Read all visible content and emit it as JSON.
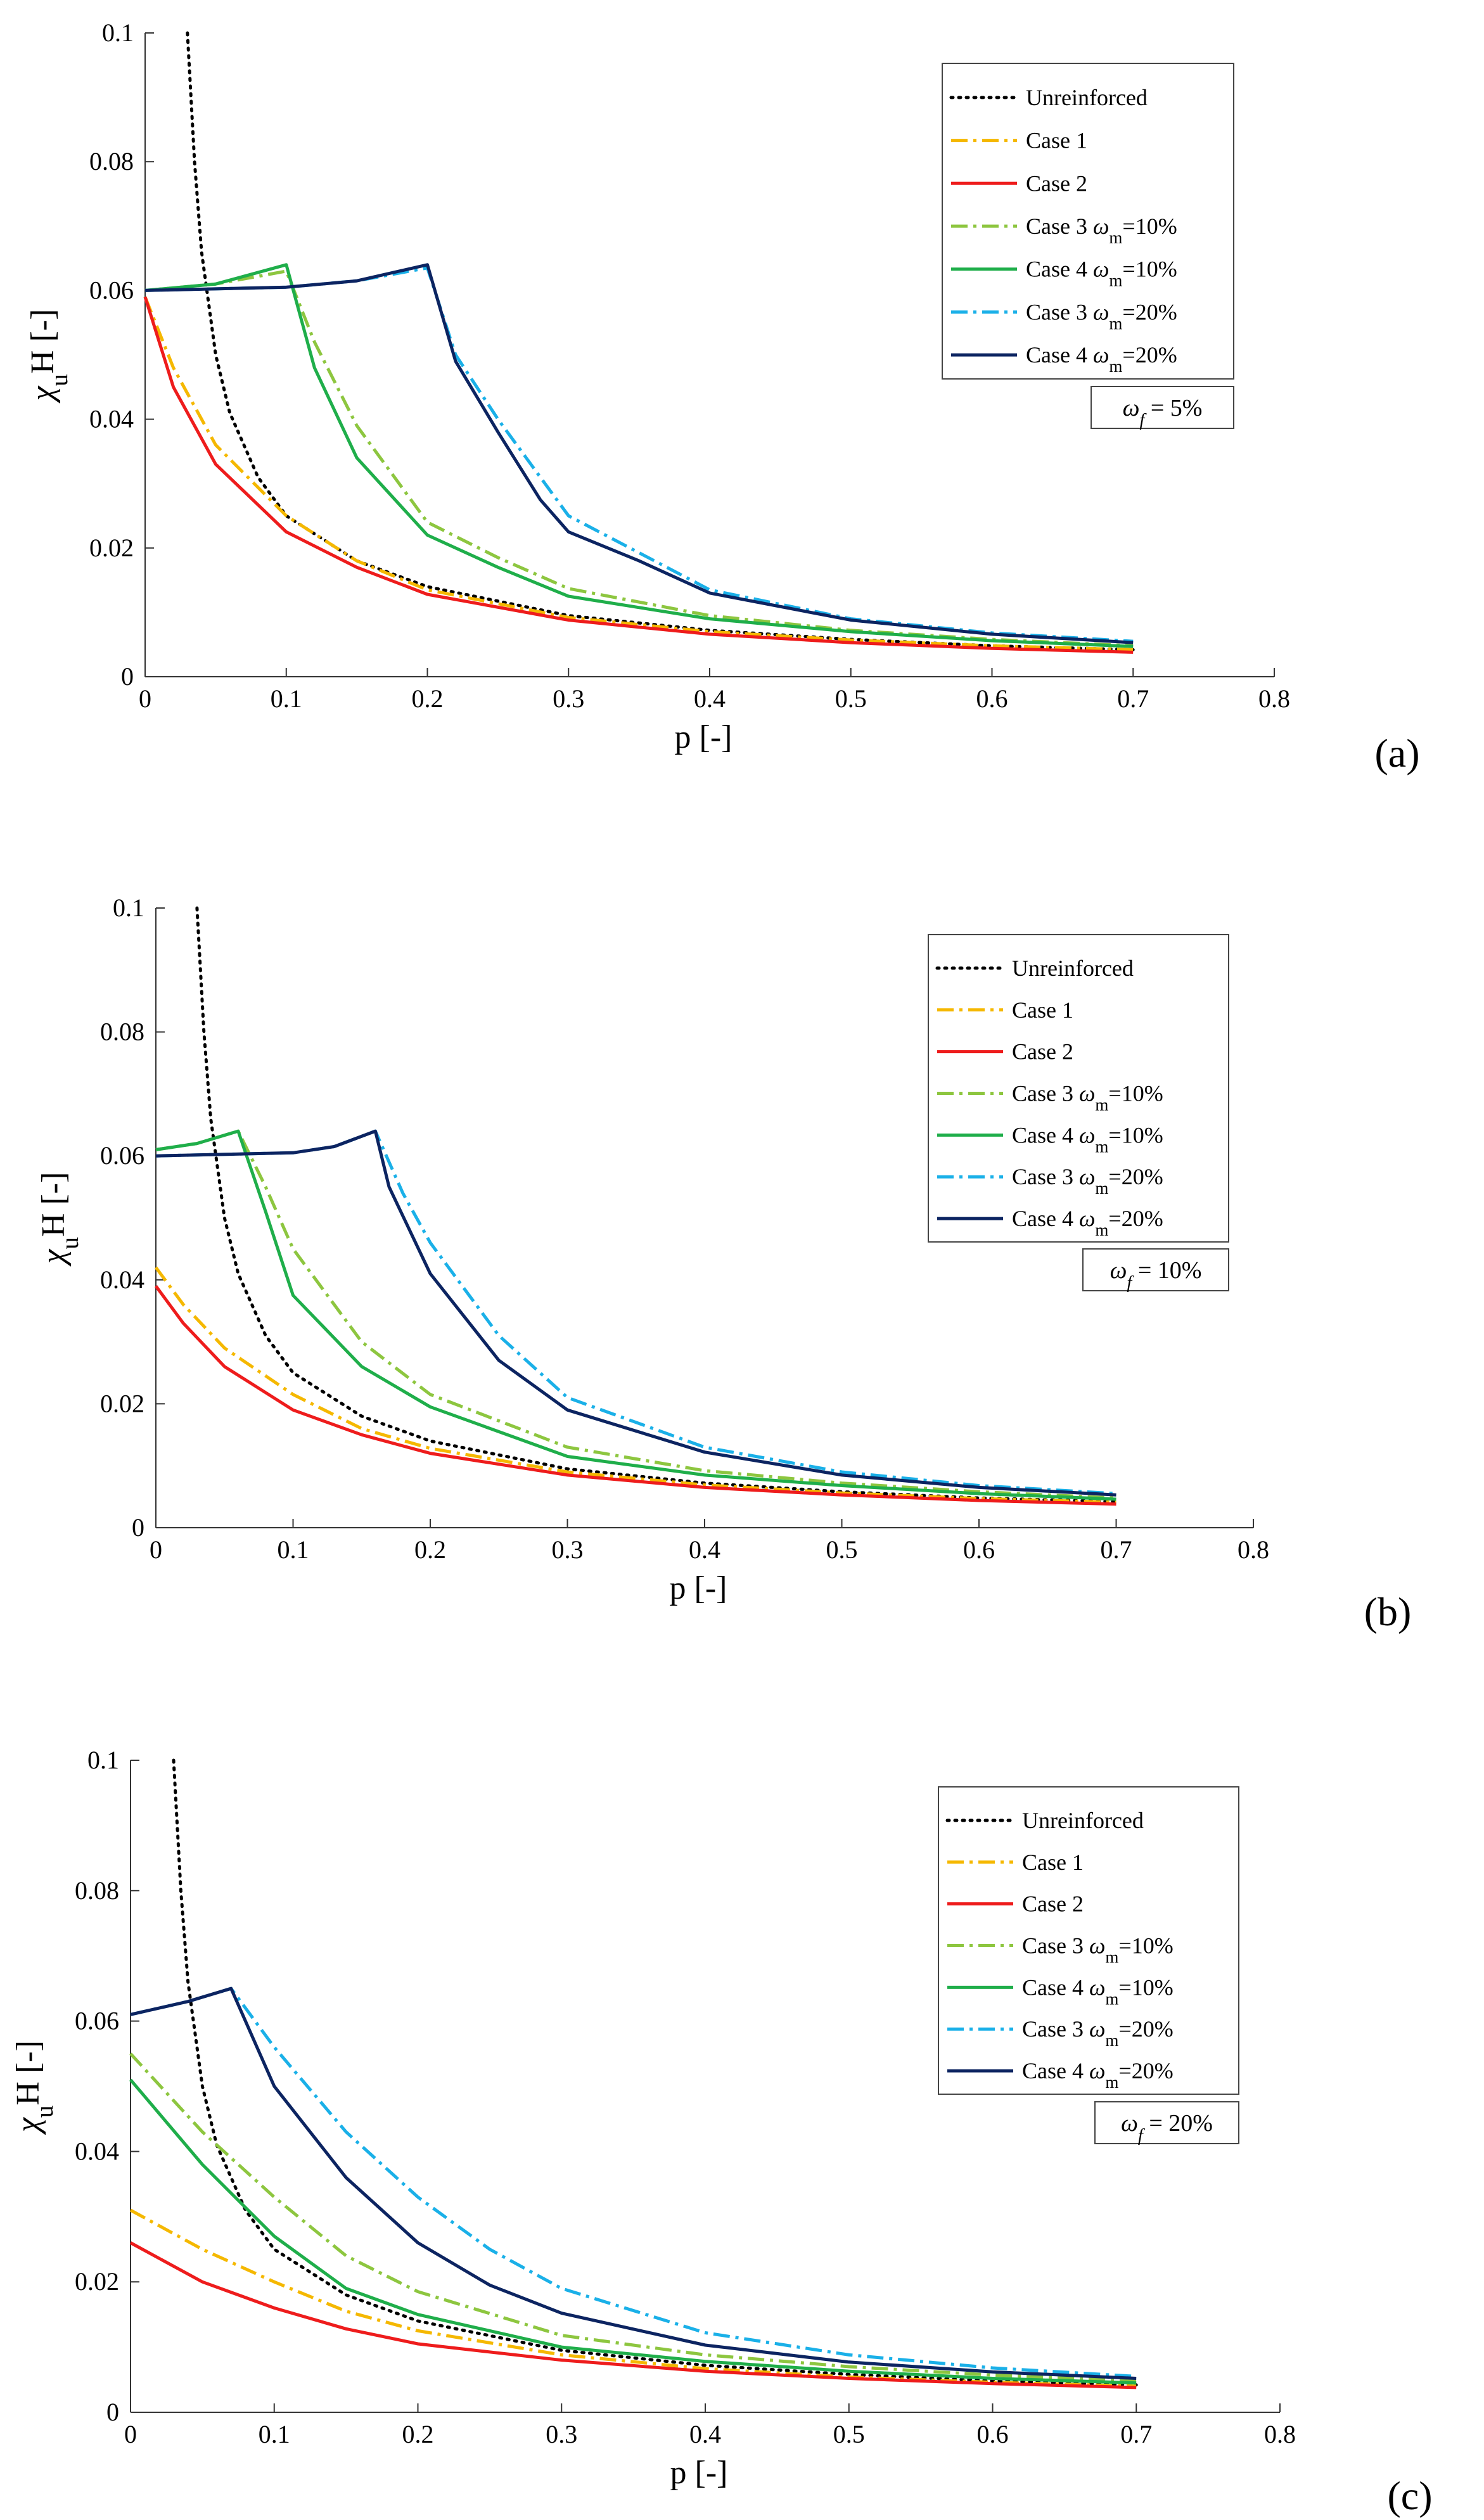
{
  "chart_data": [
    {
      "type": "line",
      "panel_label": "(a)",
      "xlabel": "p [-]",
      "ylabel": "χuH [-]",
      "xlim": [
        0,
        0.8
      ],
      "ylim": [
        0,
        0.1
      ],
      "x_ticks": [
        "0",
        "0.1",
        "0.2",
        "0.3",
        "0.4",
        "0.5",
        "0.6",
        "0.7",
        "0.8"
      ],
      "y_ticks": [
        "0",
        "0.02",
        "0.04",
        "0.06",
        "0.08",
        "0.1"
      ],
      "legend_position": "top-right",
      "annotation": "ωf = 5%",
      "series": [
        {
          "name": "Unreinforced",
          "color": "#000000",
          "style": "dotted",
          "x": [
            0.03,
            0.035,
            0.04,
            0.05,
            0.06,
            0.08,
            0.1,
            0.15,
            0.2,
            0.3,
            0.4,
            0.5,
            0.6,
            0.7
          ],
          "y": [
            0.1,
            0.08,
            0.066,
            0.05,
            0.041,
            0.031,
            0.025,
            0.018,
            0.014,
            0.0095,
            0.0072,
            0.0058,
            0.0048,
            0.0042
          ]
        },
        {
          "name": "Case 1",
          "color": "#f5b800",
          "style": "dashdot",
          "x": [
            0,
            0.02,
            0.05,
            0.1,
            0.15,
            0.2,
            0.3,
            0.4,
            0.5,
            0.6,
            0.7
          ],
          "y": [
            0.059,
            0.048,
            0.036,
            0.025,
            0.018,
            0.0135,
            0.0092,
            0.007,
            0.0057,
            0.0048,
            0.0042
          ]
        },
        {
          "name": "Case 2",
          "color": "#ee1c1c",
          "style": "solid",
          "x": [
            0,
            0.02,
            0.05,
            0.1,
            0.15,
            0.2,
            0.3,
            0.4,
            0.5,
            0.6,
            0.7
          ],
          "y": [
            0.059,
            0.045,
            0.033,
            0.0225,
            0.017,
            0.0128,
            0.0088,
            0.0066,
            0.0053,
            0.0044,
            0.0038
          ]
        },
        {
          "name": "Case 3 ωm=10%",
          "color": "#8dc63f",
          "style": "dashdot",
          "x": [
            0,
            0.05,
            0.1,
            0.12,
            0.15,
            0.2,
            0.25,
            0.3,
            0.4,
            0.5,
            0.6,
            0.7
          ],
          "y": [
            0.06,
            0.061,
            0.063,
            0.052,
            0.039,
            0.024,
            0.0185,
            0.0137,
            0.0095,
            0.0072,
            0.0058,
            0.0048
          ]
        },
        {
          "name": "Case 4 ωm=10%",
          "color": "#1fae4a",
          "style": "solid",
          "x": [
            0,
            0.05,
            0.1,
            0.12,
            0.15,
            0.2,
            0.25,
            0.3,
            0.4,
            0.5,
            0.6,
            0.7
          ],
          "y": [
            0.06,
            0.061,
            0.064,
            0.048,
            0.034,
            0.022,
            0.017,
            0.0125,
            0.009,
            0.007,
            0.0056,
            0.0047
          ]
        },
        {
          "name": "Case 3 ωm=20%",
          "color": "#1ab0e8",
          "style": "dashdot",
          "x": [
            0,
            0.1,
            0.15,
            0.2,
            0.22,
            0.25,
            0.3,
            0.4,
            0.5,
            0.6,
            0.7
          ],
          "y": [
            0.06,
            0.0605,
            0.0615,
            0.0635,
            0.05,
            0.04,
            0.025,
            0.0135,
            0.009,
            0.0068,
            0.0055
          ]
        },
        {
          "name": "Case 4 ωm=20%",
          "color": "#0c2461",
          "style": "solid",
          "x": [
            0,
            0.1,
            0.15,
            0.2,
            0.22,
            0.25,
            0.28,
            0.3,
            0.35,
            0.4,
            0.5,
            0.6,
            0.7
          ],
          "y": [
            0.06,
            0.0605,
            0.0615,
            0.064,
            0.049,
            0.038,
            0.0275,
            0.0225,
            0.018,
            0.013,
            0.0088,
            0.0066,
            0.0053
          ]
        }
      ]
    },
    {
      "type": "line",
      "panel_label": "(b)",
      "xlabel": "p [-]",
      "ylabel": "χuH [-]",
      "xlim": [
        0,
        0.8
      ],
      "ylim": [
        0,
        0.1
      ],
      "x_ticks": [
        "0",
        "0.1",
        "0.2",
        "0.3",
        "0.4",
        "0.5",
        "0.6",
        "0.7",
        "0.8"
      ],
      "y_ticks": [
        "0",
        "0.02",
        "0.04",
        "0.06",
        "0.08",
        "0.1"
      ],
      "legend_position": "top-right",
      "annotation": "ωf = 10%",
      "series": [
        {
          "name": "Unreinforced",
          "color": "#000000",
          "style": "dotted",
          "x": [
            0.03,
            0.035,
            0.04,
            0.05,
            0.06,
            0.08,
            0.1,
            0.15,
            0.2,
            0.3,
            0.4,
            0.5,
            0.6,
            0.7
          ],
          "y": [
            0.1,
            0.08,
            0.066,
            0.05,
            0.041,
            0.031,
            0.025,
            0.018,
            0.014,
            0.0095,
            0.0072,
            0.0058,
            0.0048,
            0.0042
          ]
        },
        {
          "name": "Case 1",
          "color": "#f5b800",
          "style": "dashdot",
          "x": [
            0,
            0.02,
            0.05,
            0.1,
            0.15,
            0.2,
            0.3,
            0.4,
            0.5,
            0.6,
            0.7
          ],
          "y": [
            0.042,
            0.036,
            0.029,
            0.0215,
            0.016,
            0.0128,
            0.009,
            0.0069,
            0.0056,
            0.0047,
            0.0041
          ]
        },
        {
          "name": "Case 2",
          "color": "#ee1c1c",
          "style": "solid",
          "x": [
            0,
            0.02,
            0.05,
            0.1,
            0.15,
            0.2,
            0.3,
            0.4,
            0.5,
            0.6,
            0.7
          ],
          "y": [
            0.039,
            0.033,
            0.026,
            0.019,
            0.015,
            0.012,
            0.0085,
            0.0065,
            0.0053,
            0.0044,
            0.0038
          ]
        },
        {
          "name": "Case 3 ωm=10%",
          "color": "#8dc63f",
          "style": "dashdot",
          "x": [
            0,
            0.03,
            0.06,
            0.08,
            0.1,
            0.15,
            0.2,
            0.3,
            0.4,
            0.5,
            0.6,
            0.7
          ],
          "y": [
            0.061,
            0.062,
            0.064,
            0.055,
            0.045,
            0.03,
            0.0215,
            0.013,
            0.0092,
            0.0072,
            0.0058,
            0.0048
          ]
        },
        {
          "name": "Case 4 ωm=10%",
          "color": "#1fae4a",
          "style": "solid",
          "x": [
            0,
            0.03,
            0.06,
            0.08,
            0.1,
            0.15,
            0.2,
            0.3,
            0.4,
            0.5,
            0.6,
            0.7
          ],
          "y": [
            0.061,
            0.062,
            0.064,
            0.051,
            0.0375,
            0.026,
            0.0195,
            0.0115,
            0.0085,
            0.0068,
            0.0055,
            0.0046
          ]
        },
        {
          "name": "Case 3 ωm=20%",
          "color": "#1ab0e8",
          "style": "dashdot",
          "x": [
            0,
            0.1,
            0.13,
            0.16,
            0.18,
            0.2,
            0.25,
            0.3,
            0.4,
            0.5,
            0.6,
            0.7
          ],
          "y": [
            0.06,
            0.0605,
            0.0615,
            0.064,
            0.054,
            0.046,
            0.031,
            0.021,
            0.013,
            0.009,
            0.0068,
            0.0055
          ]
        },
        {
          "name": "Case 4 ωm=20%",
          "color": "#0c2461",
          "style": "solid",
          "x": [
            0,
            0.1,
            0.13,
            0.16,
            0.17,
            0.2,
            0.25,
            0.3,
            0.4,
            0.5,
            0.6,
            0.7
          ],
          "y": [
            0.06,
            0.0605,
            0.0615,
            0.064,
            0.055,
            0.041,
            0.027,
            0.019,
            0.0122,
            0.0085,
            0.0065,
            0.0053
          ]
        }
      ]
    },
    {
      "type": "line",
      "panel_label": "(c)",
      "xlabel": "p [-]",
      "ylabel": "χuH [-]",
      "xlim": [
        0,
        0.8
      ],
      "ylim": [
        0,
        0.1
      ],
      "x_ticks": [
        "0",
        "0.1",
        "0.2",
        "0.3",
        "0.4",
        "0.5",
        "0.6",
        "0.7",
        "0.8"
      ],
      "y_ticks": [
        "0",
        "0.02",
        "0.04",
        "0.06",
        "0.08",
        "0.1"
      ],
      "legend_position": "top-right",
      "annotation": "ωf = 20%",
      "series": [
        {
          "name": "Unreinforced",
          "color": "#000000",
          "style": "dotted",
          "x": [
            0.03,
            0.035,
            0.04,
            0.05,
            0.06,
            0.08,
            0.1,
            0.15,
            0.2,
            0.3,
            0.4,
            0.5,
            0.6,
            0.7
          ],
          "y": [
            0.1,
            0.08,
            0.066,
            0.05,
            0.041,
            0.031,
            0.025,
            0.018,
            0.014,
            0.0095,
            0.0072,
            0.0058,
            0.0048,
            0.0042
          ]
        },
        {
          "name": "Case 1",
          "color": "#f5b800",
          "style": "dashdot",
          "x": [
            0,
            0.05,
            0.1,
            0.15,
            0.2,
            0.3,
            0.4,
            0.5,
            0.6,
            0.7
          ],
          "y": [
            0.031,
            0.025,
            0.02,
            0.0155,
            0.0125,
            0.0088,
            0.0067,
            0.0054,
            0.0046,
            0.004
          ]
        },
        {
          "name": "Case 2",
          "color": "#ee1c1c",
          "style": "solid",
          "x": [
            0,
            0.05,
            0.1,
            0.15,
            0.2,
            0.3,
            0.4,
            0.5,
            0.6,
            0.7
          ],
          "y": [
            0.026,
            0.02,
            0.016,
            0.0128,
            0.0105,
            0.008,
            0.0063,
            0.0052,
            0.0044,
            0.0038
          ]
        },
        {
          "name": "Case 3 ωm=10%",
          "color": "#8dc63f",
          "style": "dashdot",
          "x": [
            0,
            0.05,
            0.1,
            0.15,
            0.2,
            0.3,
            0.4,
            0.5,
            0.6,
            0.7
          ],
          "y": [
            0.055,
            0.043,
            0.033,
            0.024,
            0.0185,
            0.0118,
            0.0088,
            0.007,
            0.0057,
            0.0048
          ]
        },
        {
          "name": "Case 4 ωm=10%",
          "color": "#1fae4a",
          "style": "solid",
          "x": [
            0,
            0.05,
            0.1,
            0.15,
            0.2,
            0.3,
            0.4,
            0.5,
            0.6,
            0.7
          ],
          "y": [
            0.051,
            0.038,
            0.027,
            0.019,
            0.015,
            0.01,
            0.0078,
            0.0063,
            0.0052,
            0.0045
          ]
        },
        {
          "name": "Case 3 ωm=20%",
          "color": "#1ab0e8",
          "style": "dashdot",
          "x": [
            0,
            0.04,
            0.07,
            0.1,
            0.15,
            0.2,
            0.25,
            0.3,
            0.4,
            0.5,
            0.6,
            0.7
          ],
          "y": [
            0.061,
            0.063,
            0.065,
            0.056,
            0.043,
            0.033,
            0.025,
            0.019,
            0.0122,
            0.0088,
            0.0068,
            0.0055
          ]
        },
        {
          "name": "Case 4 ωm=20%",
          "color": "#0c2461",
          "style": "solid",
          "x": [
            0,
            0.04,
            0.07,
            0.1,
            0.15,
            0.2,
            0.25,
            0.3,
            0.4,
            0.5,
            0.6,
            0.7
          ],
          "y": [
            0.061,
            0.063,
            0.065,
            0.05,
            0.036,
            0.026,
            0.0195,
            0.0152,
            0.0103,
            0.0077,
            0.0062,
            0.0052
          ]
        }
      ]
    }
  ]
}
